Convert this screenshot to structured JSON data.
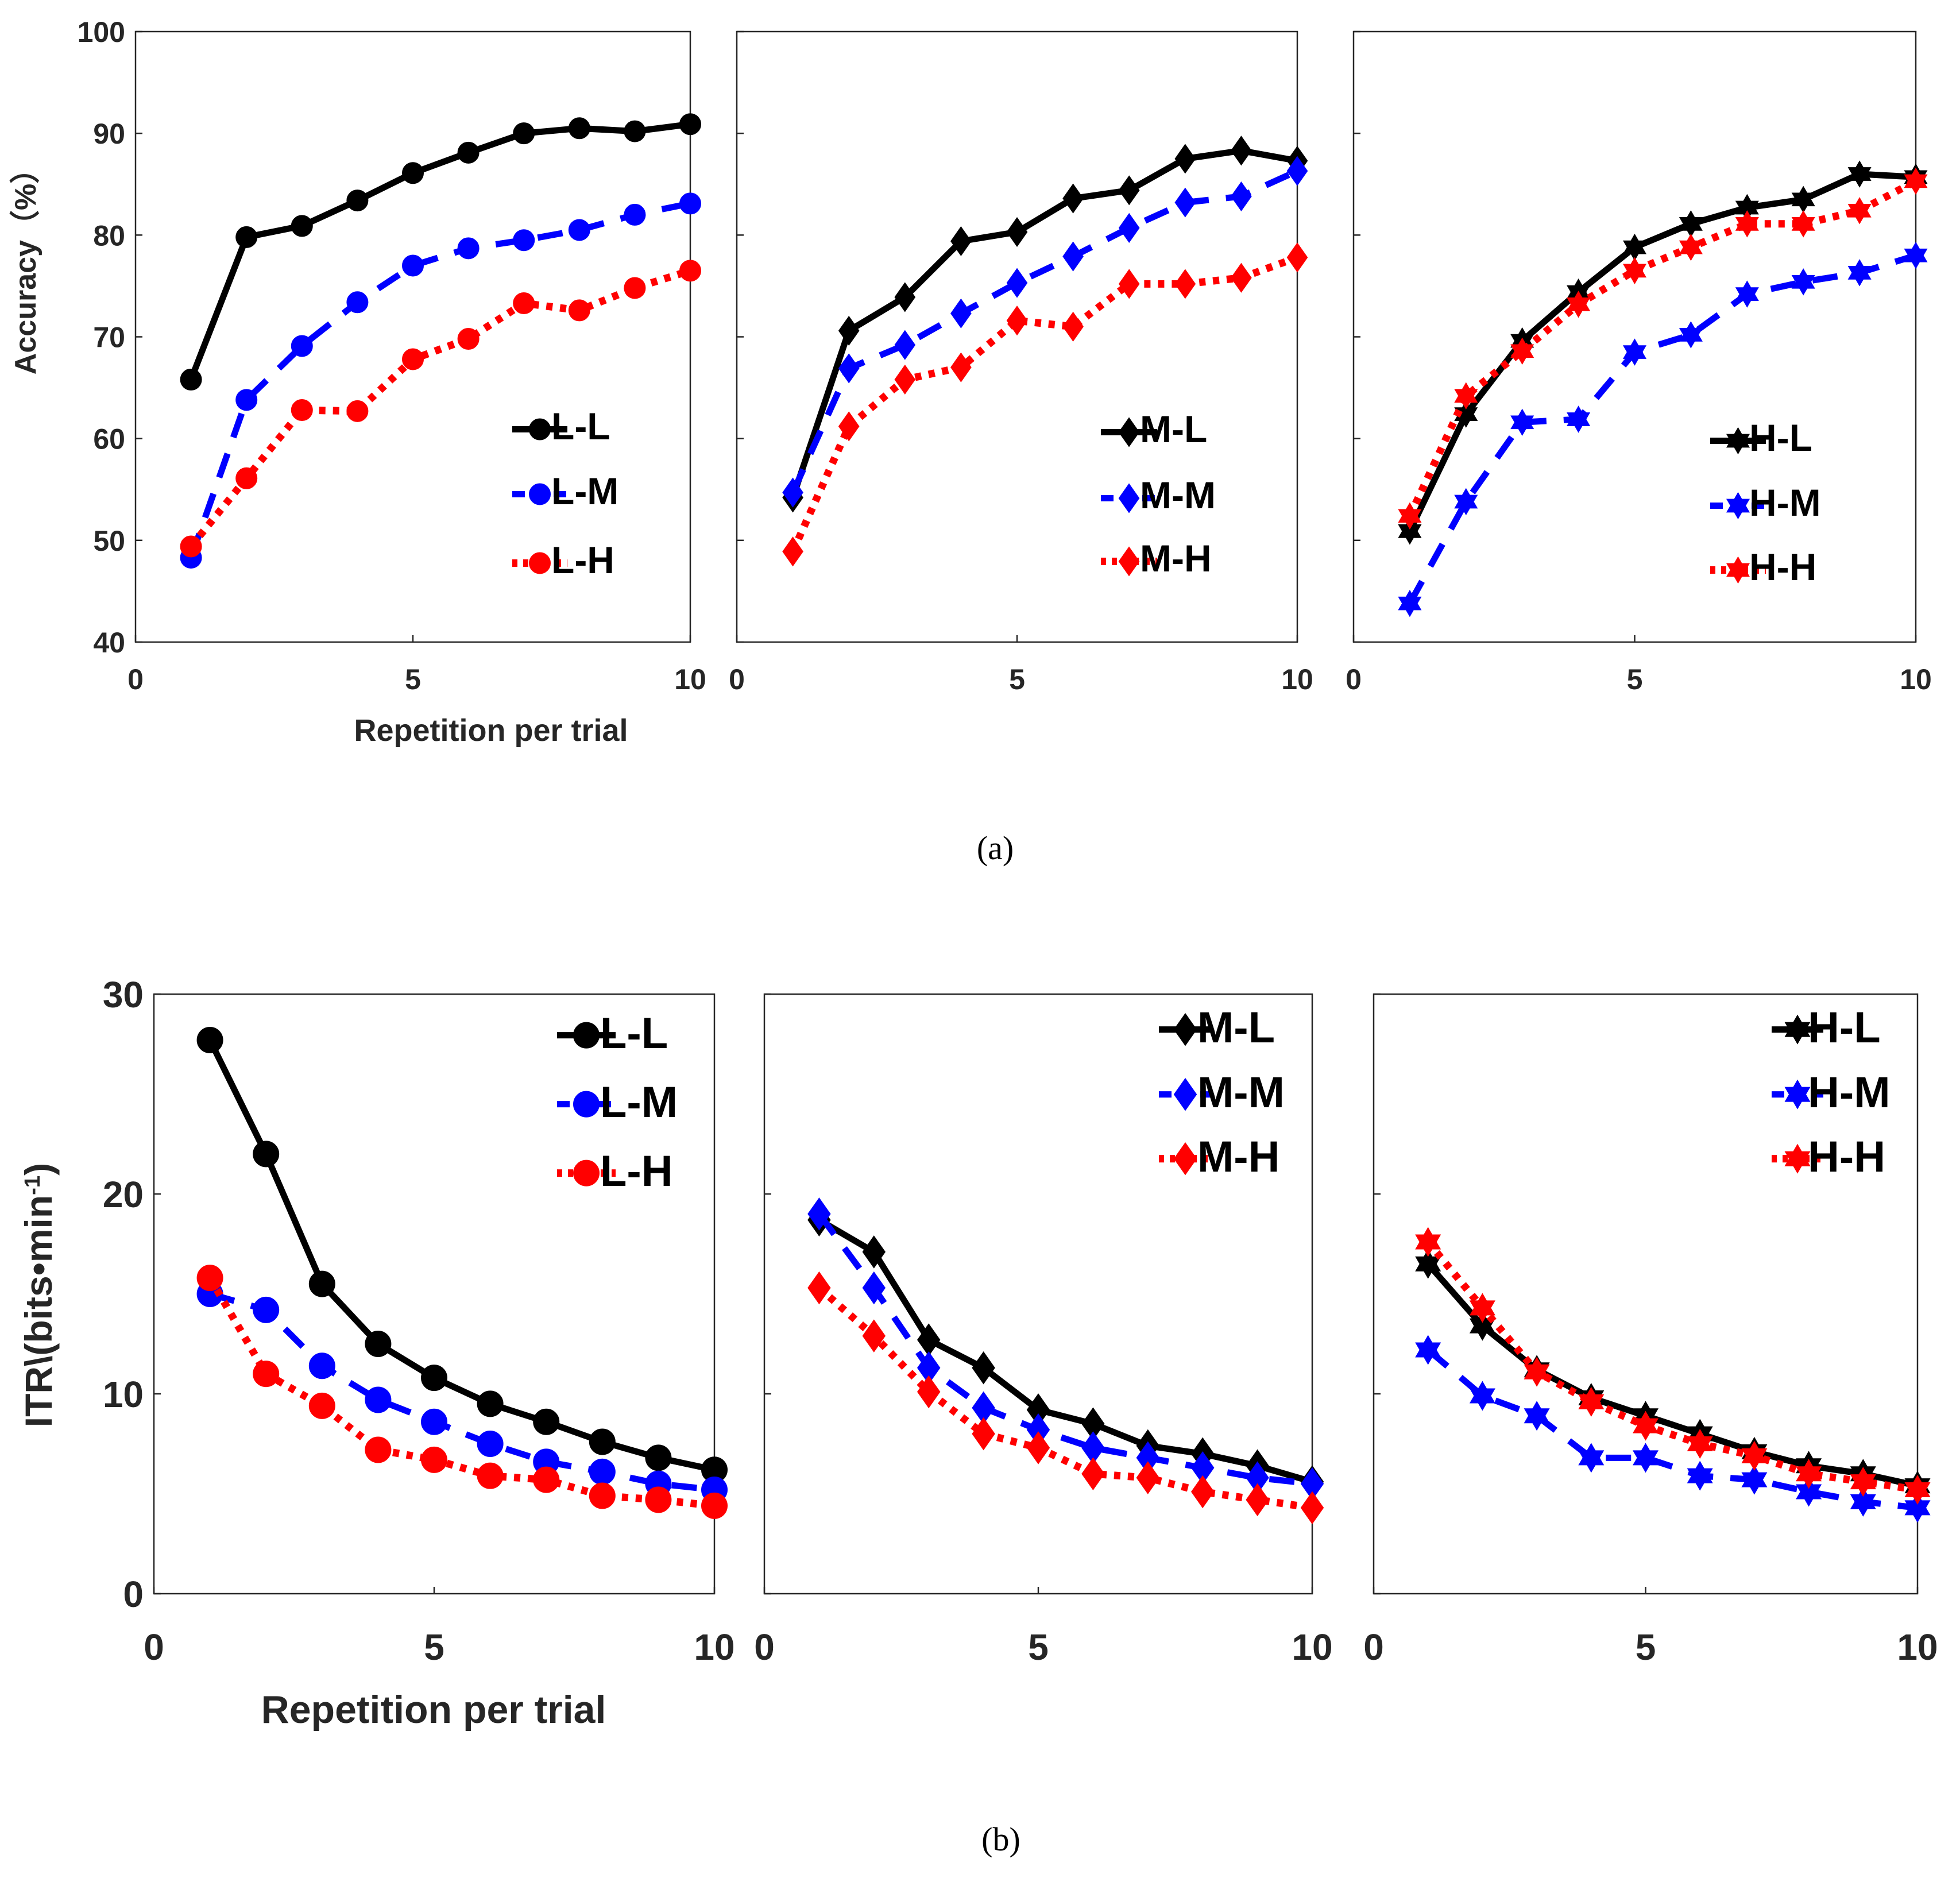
{
  "chart_data": [
    {
      "type": "line",
      "panel": "a-low",
      "xlim": [
        0,
        10
      ],
      "ylim": [
        40,
        100
      ],
      "yticks": [
        40,
        50,
        60,
        70,
        80,
        90,
        100
      ],
      "xticks": [
        0,
        5,
        10
      ],
      "ylabel": "Accuracy（%）",
      "xlabel": "Repetition per trial",
      "marker": "circle",
      "series": [
        {
          "name": "L-L",
          "color": "#000000",
          "x": [
            1,
            2,
            3,
            4,
            5,
            6,
            7,
            8,
            9,
            10
          ],
          "values": [
            65.8,
            79.8,
            80.9,
            83.4,
            86.1,
            88.1,
            90.0,
            90.5,
            90.2,
            90.9
          ]
        },
        {
          "name": "L-M",
          "color": "#0000ff",
          "x": [
            1,
            2,
            3,
            4,
            5,
            6,
            7,
            8,
            9,
            10
          ],
          "values": [
            48.3,
            63.8,
            69.1,
            73.4,
            77.0,
            78.7,
            79.5,
            80.5,
            82.0,
            83.1
          ]
        },
        {
          "name": "L-H",
          "color": "#ff0000",
          "x": [
            1,
            2,
            3,
            4,
            5,
            6,
            7,
            8,
            9,
            10
          ],
          "values": [
            49.4,
            56.1,
            62.8,
            62.7,
            67.8,
            69.8,
            73.3,
            72.6,
            74.8,
            76.5
          ]
        }
      ]
    },
    {
      "type": "line",
      "panel": "a-mid",
      "xlim": [
        0,
        10
      ],
      "ylim": [
        40,
        100
      ],
      "xticks": [
        0,
        5,
        10
      ],
      "marker": "diamond",
      "series": [
        {
          "name": "M-L",
          "color": "#000000",
          "x": [
            1,
            2,
            3,
            4,
            5,
            6,
            7,
            8,
            9,
            10
          ],
          "values": [
            54.2,
            70.6,
            73.9,
            79.4,
            80.3,
            83.6,
            84.4,
            87.5,
            88.3,
            87.3
          ]
        },
        {
          "name": "M-M",
          "color": "#0000ff",
          "x": [
            1,
            2,
            3,
            4,
            5,
            6,
            7,
            8,
            9,
            10
          ],
          "values": [
            54.7,
            66.9,
            69.2,
            72.3,
            75.3,
            77.9,
            80.7,
            83.2,
            83.8,
            86.3
          ]
        },
        {
          "name": "M-H",
          "color": "#ff0000",
          "x": [
            1,
            2,
            3,
            4,
            5,
            6,
            7,
            8,
            9,
            10
          ],
          "values": [
            48.9,
            61.2,
            65.8,
            67.0,
            71.6,
            71.0,
            75.2,
            75.2,
            75.8,
            77.8
          ]
        }
      ]
    },
    {
      "type": "line",
      "panel": "a-high",
      "xlim": [
        0,
        10
      ],
      "ylim": [
        40,
        100
      ],
      "xticks": [
        0,
        5,
        10
      ],
      "marker": "hexagram",
      "series": [
        {
          "name": "H-L",
          "color": "#000000",
          "x": [
            1,
            2,
            3,
            4,
            5,
            6,
            7,
            8,
            9,
            10
          ],
          "values": [
            50.9,
            62.4,
            69.6,
            74.4,
            78.8,
            81.1,
            82.7,
            83.5,
            86.0,
            85.7
          ]
        },
        {
          "name": "H-M",
          "color": "#0000ff",
          "x": [
            1,
            2,
            3,
            4,
            5,
            6,
            7,
            8,
            9,
            10
          ],
          "values": [
            43.8,
            53.8,
            61.6,
            61.9,
            68.5,
            70.2,
            74.2,
            75.4,
            76.3,
            78.0
          ]
        },
        {
          "name": "H-H",
          "color": "#ff0000",
          "x": [
            1,
            2,
            3,
            4,
            5,
            6,
            7,
            8,
            9,
            10
          ],
          "values": [
            52.4,
            64.2,
            68.6,
            73.2,
            76.5,
            78.8,
            81.1,
            81.1,
            82.4,
            85.3
          ]
        }
      ]
    },
    {
      "type": "line",
      "panel": "b-low",
      "xlim": [
        0,
        10
      ],
      "ylim": [
        0,
        30
      ],
      "yticks": [
        0,
        10,
        20,
        30
      ],
      "xticks": [
        0,
        5,
        10
      ],
      "ylabel": "ITR\\(bits•min",
      "ylabel_sup": "-1",
      "ylabel_tail": ")",
      "xlabel": "Repetition per trial",
      "marker": "circle",
      "series": [
        {
          "name": "L-L",
          "color": "#000000",
          "x": [
            1,
            2,
            3,
            4,
            5,
            6,
            7,
            8,
            9,
            10
          ],
          "values": [
            27.7,
            22.0,
            15.5,
            12.5,
            10.8,
            9.5,
            8.6,
            7.6,
            6.8,
            6.2
          ]
        },
        {
          "name": "L-M",
          "color": "#0000ff",
          "x": [
            1,
            2,
            3,
            4,
            5,
            6,
            7,
            8,
            9,
            10
          ],
          "values": [
            15.0,
            14.2,
            11.4,
            9.7,
            8.6,
            7.5,
            6.6,
            6.1,
            5.5,
            5.2
          ]
        },
        {
          "name": "L-H",
          "color": "#ff0000",
          "x": [
            1,
            2,
            3,
            4,
            5,
            6,
            7,
            8,
            9,
            10
          ],
          "values": [
            15.8,
            11.0,
            9.4,
            7.2,
            6.7,
            5.9,
            5.7,
            4.9,
            4.7,
            4.4
          ]
        }
      ]
    },
    {
      "type": "line",
      "panel": "b-mid",
      "xlim": [
        0,
        10
      ],
      "ylim": [
        0,
        30
      ],
      "xticks": [
        0,
        5,
        10
      ],
      "marker": "diamond",
      "series": [
        {
          "name": "M-L",
          "color": "#000000",
          "x": [
            1,
            2,
            3,
            4,
            5,
            6,
            7,
            8,
            9,
            10
          ],
          "values": [
            18.7,
            17.1,
            12.7,
            11.3,
            9.2,
            8.5,
            7.4,
            7.0,
            6.4,
            5.6
          ]
        },
        {
          "name": "M-M",
          "color": "#0000ff",
          "x": [
            1,
            2,
            3,
            4,
            5,
            6,
            7,
            8,
            9,
            10
          ],
          "values": [
            19.0,
            15.3,
            11.3,
            9.3,
            8.2,
            7.3,
            6.8,
            6.3,
            5.8,
            5.5
          ]
        },
        {
          "name": "M-H",
          "color": "#ff0000",
          "x": [
            1,
            2,
            3,
            4,
            5,
            6,
            7,
            8,
            9,
            10
          ],
          "values": [
            15.3,
            12.9,
            10.1,
            8.0,
            7.3,
            6.0,
            5.8,
            5.1,
            4.7,
            4.3
          ]
        }
      ]
    },
    {
      "type": "line",
      "panel": "b-high",
      "xlim": [
        0,
        10
      ],
      "ylim": [
        0,
        30
      ],
      "xticks": [
        0,
        5,
        10
      ],
      "marker": "hexagram",
      "series": [
        {
          "name": "H-L",
          "color": "#000000",
          "x": [
            1,
            2,
            3,
            4,
            5,
            6,
            7,
            8,
            9,
            10
          ],
          "values": [
            16.5,
            13.4,
            11.2,
            9.8,
            8.9,
            8.0,
            7.1,
            6.4,
            6.0,
            5.4
          ]
        },
        {
          "name": "H-M",
          "color": "#0000ff",
          "x": [
            1,
            2,
            3,
            4,
            5,
            6,
            7,
            8,
            9,
            10
          ],
          "values": [
            12.2,
            9.9,
            8.9,
            6.8,
            6.8,
            5.9,
            5.7,
            5.1,
            4.6,
            4.3
          ]
        },
        {
          "name": "H-H",
          "color": "#ff0000",
          "x": [
            1,
            2,
            3,
            4,
            5,
            6,
            7,
            8,
            9,
            10
          ],
          "values": [
            17.6,
            14.3,
            11.1,
            9.6,
            8.4,
            7.5,
            6.9,
            6.0,
            5.6,
            5.2
          ]
        }
      ]
    }
  ],
  "captions": {
    "a": "(a)",
    "b": "(b)"
  }
}
